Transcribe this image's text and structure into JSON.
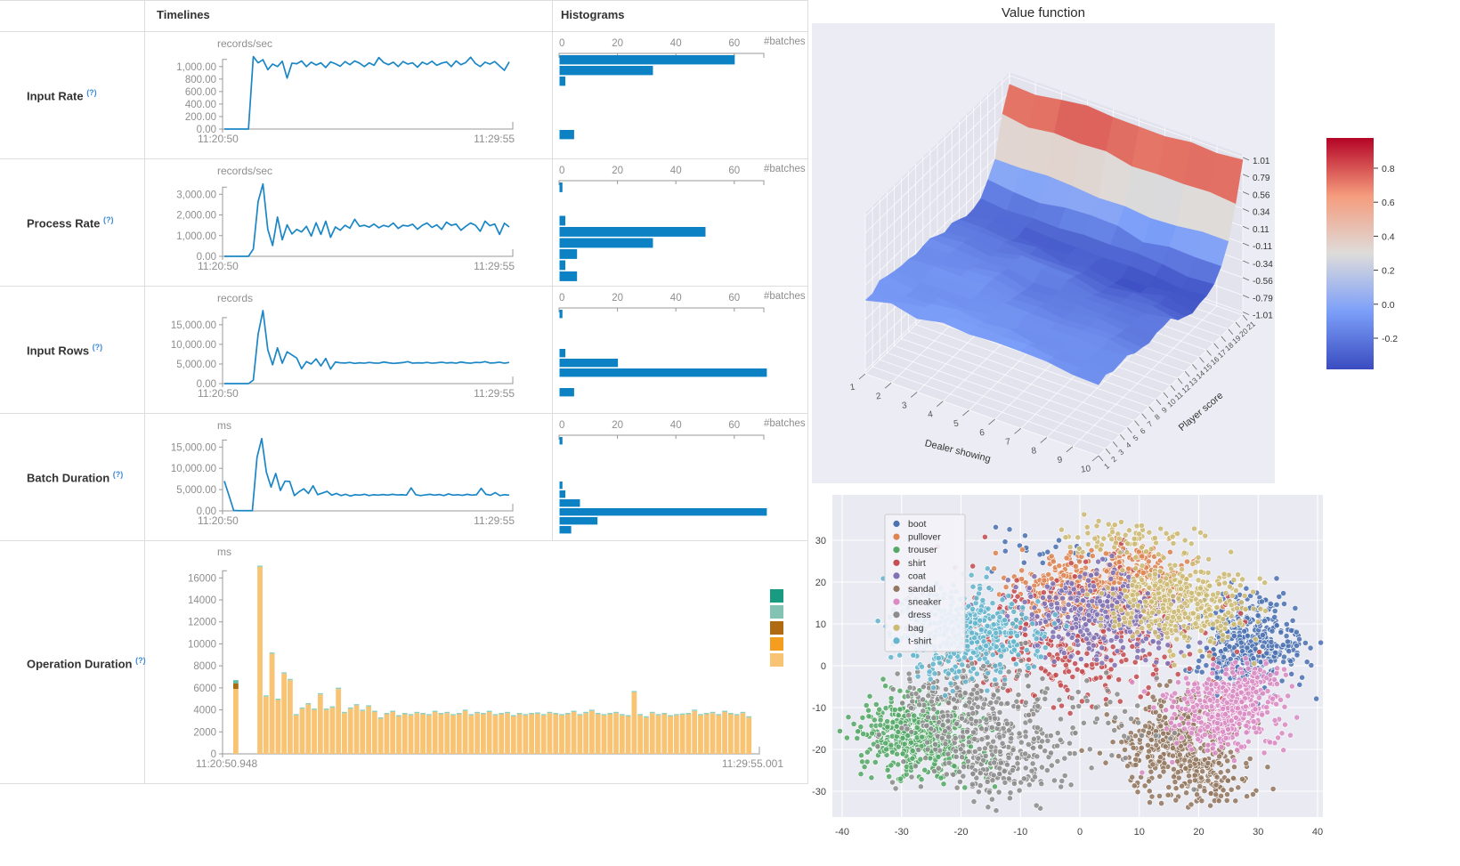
{
  "ui": {
    "left_panel": {
      "headers": {
        "timelines": "Timelines",
        "histograms": "Histograms"
      },
      "help_marker": "(?)",
      "rows": [
        {
          "label": "Input Rate",
          "unit": "records/sec",
          "time_start": "11:20:50",
          "time_end": "11:29:55",
          "batches_label": "#batches"
        },
        {
          "label": "Process Rate",
          "unit": "records/sec",
          "time_start": "11:20:50",
          "time_end": "11:29:55",
          "batches_label": "#batches"
        },
        {
          "label": "Input Rows",
          "unit": "records",
          "time_start": "11:20:50",
          "time_end": "11:29:55",
          "batches_label": "#batches"
        },
        {
          "label": "Batch Duration",
          "unit": "ms",
          "time_start": "11:20:50",
          "time_end": "11:29:55",
          "batches_label": "#batches"
        },
        {
          "label": "Operation Duration",
          "unit": "ms",
          "time_start": "11:20:50.948",
          "time_end": "11:29:55.001"
        }
      ]
    },
    "accents": {
      "line": "#1a86c6",
      "bar": "#0c82c4",
      "grid_bg": "#eaeaf2"
    }
  },
  "chart_data": [
    {
      "id": "input-rate-timeline",
      "type": "line",
      "title": "Input Rate",
      "ylabel": "records/sec",
      "x_start": "11:20:50",
      "x_end": "11:29:55",
      "axis_max": 1225,
      "yticks": [
        0,
        200,
        400,
        600,
        800,
        1000
      ],
      "ytick_labels": [
        "0.00",
        "200.00",
        "400.00",
        "600.00",
        "800.00",
        "1,000.00"
      ],
      "values": [
        0,
        0,
        0,
        0,
        0,
        0,
        1160,
        1060,
        1110,
        950,
        1040,
        1000,
        1085,
        815,
        1055,
        1045,
        1090,
        1000,
        1070,
        1025,
        1060,
        985,
        1075,
        1045,
        1005,
        1080,
        1030,
        1090,
        1055,
        1000,
        1060,
        1020,
        1145,
        1065,
        1030,
        1070,
        1000,
        1080,
        1040,
        1060,
        990,
        1070,
        1035,
        1085,
        1020,
        1055,
        1075,
        1000,
        1090,
        1030,
        1065,
        1150,
        1050,
        1000,
        1070,
        1040,
        1080,
        1010,
        940,
        1075
      ]
    },
    {
      "id": "input-rate-histogram",
      "type": "bar",
      "xlabel": "#batches",
      "xticks": [
        0,
        20,
        40,
        60
      ],
      "bin_h": 12,
      "bins": [
        60,
        32,
        2,
        0,
        0,
        0,
        0,
        5
      ]
    },
    {
      "id": "process-rate-timeline",
      "type": "line",
      "title": "Process Rate",
      "ylabel": "records/sec",
      "x_start": "11:20:50",
      "x_end": "11:29:55",
      "axis_max": 3700,
      "yticks": [
        0,
        1000,
        2000,
        3000
      ],
      "ytick_labels": [
        "0.00",
        "1,000.00",
        "2,000.00",
        "3,000.00"
      ],
      "values": [
        0,
        0,
        0,
        0,
        0,
        0,
        350,
        2650,
        3500,
        1300,
        520,
        1900,
        800,
        1520,
        1080,
        1300,
        1180,
        1450,
        980,
        1620,
        1060,
        1700,
        920,
        1420,
        1260,
        1500,
        1360,
        1790,
        1450,
        1500,
        1410,
        1560,
        1380,
        1500,
        1430,
        1610,
        1350,
        1500,
        1460,
        1550,
        1310,
        1500,
        1610,
        1400,
        1520,
        1300,
        1650,
        1500,
        1560,
        1260,
        1450,
        1610,
        1500,
        1210,
        1700,
        1480,
        1560,
        1060,
        1600,
        1420
      ]
    },
    {
      "id": "process-rate-histogram",
      "type": "bar",
      "xlabel": "#batches",
      "xticks": [
        0,
        20,
        40,
        60
      ],
      "bin_h": 12.5,
      "bins": [
        1,
        0,
        0,
        2,
        50,
        32,
        6,
        2,
        6
      ]
    },
    {
      "id": "input-rows-timeline",
      "type": "line",
      "title": "Input Rows",
      "ylabel": "records",
      "x_start": "11:20:50",
      "x_end": "11:29:55",
      "axis_max": 19500,
      "yticks": [
        0,
        5000,
        10000,
        15000
      ],
      "ytick_labels": [
        "0.00",
        "5,000.00",
        "10,000.00",
        "15,000.00"
      ],
      "values": [
        0,
        0,
        0,
        0,
        0,
        0,
        900,
        12600,
        18600,
        8600,
        4800,
        9100,
        5200,
        8100,
        7300,
        6500,
        3800,
        5600,
        5000,
        6300,
        4500,
        6400,
        3700,
        5500,
        5300,
        5250,
        5400,
        5150,
        5300,
        5200,
        5400,
        5250,
        5200,
        5500,
        5300,
        5150,
        5250,
        5350,
        5600,
        5200,
        5300,
        5250,
        5400,
        5200,
        5300,
        5450,
        5250,
        5350,
        5200,
        5500,
        5300,
        5200,
        5400,
        5350,
        5600,
        5250,
        5300,
        5450,
        5200,
        5400
      ]
    },
    {
      "id": "input-rows-histogram",
      "type": "bar",
      "xlabel": "#batches",
      "xticks": [
        0,
        20,
        40,
        60
      ],
      "bin_h": 11,
      "bins": [
        1,
        0,
        0,
        0,
        2,
        20,
        71,
        0,
        5
      ]
    },
    {
      "id": "batch-duration-timeline",
      "type": "line",
      "title": "Batch Duration",
      "ylabel": "ms",
      "x_start": "11:20:50",
      "x_end": "11:29:55",
      "axis_max": 18000,
      "yticks": [
        0,
        5000,
        10000,
        15000
      ],
      "ytick_labels": [
        "0.00",
        "5,000.00",
        "10,000.00",
        "15,000.00"
      ],
      "values": [
        7000,
        3600,
        100,
        50,
        50,
        50,
        50,
        12600,
        17000,
        9100,
        5600,
        8800,
        4800,
        7000,
        6900,
        3600,
        4500,
        5200,
        4100,
        5900,
        3800,
        4200,
        4600,
        3700,
        4100,
        3600,
        3900,
        3500,
        3800,
        3700,
        3900,
        3600,
        3800,
        3700,
        3850,
        3700,
        3900,
        3750,
        3800,
        3700,
        5400,
        3800,
        3600,
        3750,
        3900,
        3700,
        3850,
        3600,
        4000,
        3700,
        3800,
        3650,
        3900,
        3700,
        3800,
        5300,
        3900,
        3700,
        4300,
        3600,
        3800,
        3700
      ]
    },
    {
      "id": "batch-duration-histogram",
      "type": "bar",
      "xlabel": "#batches",
      "xticks": [
        0,
        20,
        40,
        60
      ],
      "bin_h": 10,
      "bins": [
        1,
        0,
        0,
        0,
        0,
        1,
        2,
        7,
        71,
        13,
        4
      ]
    },
    {
      "id": "operation-duration",
      "type": "stacked-bar",
      "title": "Operation Duration",
      "ylabel": "ms",
      "x_start": "11:20:50.948",
      "x_end": "11:29:55.001",
      "axis_max": 17400,
      "yticks": [
        0,
        2000,
        4000,
        6000,
        8000,
        10000,
        12000,
        14000,
        16000
      ],
      "ytick_labels": [
        "0",
        "2000",
        "4000",
        "6000",
        "8000",
        "10000",
        "12000",
        "14000",
        "16000"
      ],
      "first_bar": [
        {
          "color": "#f8c474",
          "value": 5900
        },
        {
          "color": "#a96a12",
          "value": 520
        },
        {
          "color": "#5fbcaa",
          "value": 280
        }
      ],
      "gap_slots": 3,
      "bar_color": "#f8c474",
      "cap_color": "#8fcfc0",
      "cap_value": 120,
      "legend_colors": [
        "#189b80",
        "#83c3b3",
        "#b06a12",
        "#f59d1f",
        "#f8c474"
      ],
      "values": [
        17000,
        5200,
        9100,
        4900,
        7300,
        6700,
        3500,
        4100,
        4500,
        4000,
        5400,
        4000,
        4200,
        5900,
        3700,
        4100,
        4400,
        3900,
        4300,
        3800,
        3200,
        3600,
        3800,
        3400,
        3600,
        3500,
        3700,
        3600,
        3500,
        3800,
        3600,
        3700,
        3500,
        3600,
        3900,
        3500,
        3700,
        3600,
        3800,
        3500,
        3600,
        3700,
        3400,
        3600,
        3500,
        3600,
        3650,
        3500,
        3700,
        3600,
        3500,
        3600,
        3800,
        3500,
        3700,
        3900,
        3600,
        3500,
        3600,
        3700,
        3500,
        3400,
        5600,
        3500,
        3300,
        3700,
        3500,
        3600,
        3400,
        3500,
        3550,
        3600,
        3900,
        3500,
        3600,
        3700,
        3500,
        3800,
        3600,
        3500,
        3700,
        3300
      ]
    },
    {
      "id": "value-function-surface",
      "type": "surface",
      "title": "Value function",
      "xlabel": "Dealer showing",
      "ylabel": "Player score",
      "x_ticks": [
        1,
        2,
        3,
        4,
        5,
        6,
        7,
        8,
        9,
        10
      ],
      "y_ticks": [
        1,
        2,
        3,
        4,
        5,
        6,
        7,
        8,
        9,
        10,
        11,
        12,
        13,
        14,
        15,
        16,
        17,
        18,
        19,
        20,
        21
      ],
      "z_ticks": [
        1.01,
        0.79,
        0.56,
        0.34,
        0.11,
        -0.11,
        -0.34,
        -0.56,
        -0.79,
        -1.01
      ],
      "z_tick_labels": [
        "1.01",
        "0.79",
        "0.56",
        "0.34",
        "0.11",
        "-0.11",
        "-0.34",
        "-0.56",
        "-0.79",
        "-1.01"
      ],
      "zlim": [
        -1.05,
        1.05
      ],
      "colorbar_ticks": [
        0.8,
        0.6,
        0.4,
        0.2,
        0.0,
        -0.2
      ],
      "colorbar_tick_labels": [
        "0.8",
        "0.6",
        "0.4",
        "0.2",
        "0.0",
        "-0.2"
      ],
      "colormap": "coolwarm",
      "noise": 0.05,
      "value_base_by_player": [
        -0.04,
        -0.05,
        -0.06,
        -0.07,
        -0.08,
        -0.09,
        -0.1,
        -0.11,
        -0.12,
        -0.13,
        -0.14,
        -0.18,
        -0.21,
        -0.23,
        -0.25,
        -0.26,
        -0.21,
        -0.08,
        0.12,
        0.55,
        0.92
      ],
      "value_slope_to_dealer10": [
        -0.05,
        -0.05,
        -0.06,
        -0.06,
        -0.06,
        -0.07,
        -0.07,
        -0.07,
        -0.08,
        -0.08,
        -0.08,
        -0.09,
        -0.1,
        -0.11,
        -0.12,
        -0.12,
        -0.1,
        -0.09,
        -0.07,
        -0.03,
        0.01
      ]
    },
    {
      "id": "tsne-scatter",
      "type": "scatter",
      "xticks": [
        -40,
        -30,
        -20,
        -10,
        0,
        10,
        20,
        30,
        40
      ],
      "yticks": [
        30,
        20,
        10,
        0,
        -10,
        -20,
        -30
      ],
      "xlim": [
        -41,
        41
      ],
      "ylim": [
        -35,
        38
      ],
      "point_radius": 3.1,
      "clusters": [
        {
          "label": "boot",
          "color": "#4C72B0",
          "blobs": [
            {
              "cx": 28,
              "cy": 5,
              "sx": 4.5,
              "sy": 5.5,
              "n": 430
            },
            {
              "cx": -4,
              "cy": 27,
              "sx": 6,
              "sy": 3,
              "n": 25
            }
          ]
        },
        {
          "label": "pullover",
          "color": "#DD8452",
          "blobs": [
            {
              "cx": 2,
              "cy": 18,
              "sx": 6.5,
              "sy": 4.5,
              "n": 420
            },
            {
              "cx": 10,
              "cy": 24,
              "sx": 4,
              "sy": 3,
              "n": 90
            }
          ]
        },
        {
          "label": "trouser",
          "color": "#55A868",
          "blobs": [
            {
              "cx": -28,
              "cy": -16,
              "sx": 4.5,
              "sy": 4.5,
              "n": 430
            },
            {
              "cx": -23,
              "cy": -22,
              "sx": 4,
              "sy": 3,
              "n": 80
            }
          ]
        },
        {
          "label": "shirt",
          "color": "#C44E52",
          "blobs": [
            {
              "cx": -1,
              "cy": 7,
              "sx": 11,
              "sy": 8,
              "n": 400
            }
          ]
        },
        {
          "label": "coat",
          "color": "#8172B3",
          "blobs": [
            {
              "cx": 3,
              "cy": 12,
              "sx": 7,
              "sy": 5,
              "n": 380
            }
          ]
        },
        {
          "label": "sandal",
          "color": "#937860",
          "blobs": [
            {
              "cx": 16,
              "cy": -18,
              "sx": 5,
              "sy": 5.5,
              "n": 380
            },
            {
              "cx": 22,
              "cy": -27,
              "sx": 4,
              "sy": 3,
              "n": 110
            }
          ]
        },
        {
          "label": "sneaker",
          "color": "#DA8BC3",
          "blobs": [
            {
              "cx": 24,
              "cy": -11,
              "sx": 4.5,
              "sy": 4.5,
              "n": 400
            },
            {
              "cx": 29,
              "cy": -4,
              "sx": 3,
              "sy": 3,
              "n": 80
            }
          ]
        },
        {
          "label": "dress",
          "color": "#8C8C8C",
          "blobs": [
            {
              "cx": -19,
              "cy": -9,
              "sx": 6.5,
              "sy": 6,
              "n": 320
            },
            {
              "cx": -13,
              "cy": -23,
              "sx": 6,
              "sy": 4.5,
              "n": 200
            },
            {
              "cx": 0,
              "cy": -15,
              "sx": 8,
              "sy": 5,
              "n": 60
            }
          ]
        },
        {
          "label": "bag",
          "color": "#CCB974",
          "blobs": [
            {
              "cx": 17,
              "cy": 15,
              "sx": 6,
              "sy": 5,
              "n": 400
            },
            {
              "cx": 8,
              "cy": 30,
              "sx": 5,
              "sy": 2.5,
              "n": 70
            }
          ]
        },
        {
          "label": "t-shirt",
          "color": "#64B5CD",
          "blobs": [
            {
              "cx": -19,
              "cy": 8,
              "sx": 6,
              "sy": 5.5,
              "n": 460
            }
          ]
        }
      ]
    }
  ]
}
